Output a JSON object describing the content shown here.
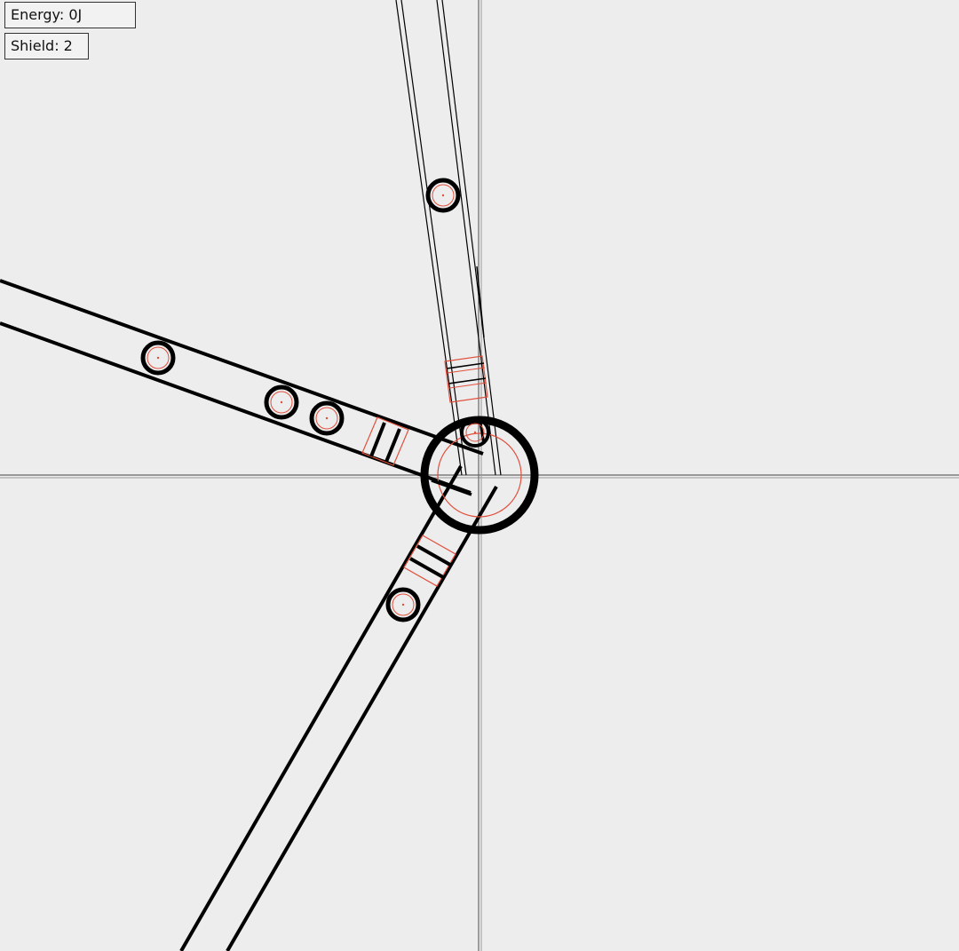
{
  "hud": {
    "energy_label": "Energy: 0J",
    "shield_label": "Shield: 2"
  },
  "colors": {
    "background": "#ededed",
    "ink": "#000000",
    "accent_red": "#e0503c",
    "axis": "#555555"
  },
  "scene": {
    "core": {
      "name": "player-core-ring"
    },
    "lanes": [
      {
        "name": "lane-north",
        "note": "thin-rail lane"
      },
      {
        "name": "lane-west",
        "note": "thick lane"
      },
      {
        "name": "lane-southwest",
        "note": "thick lane"
      }
    ],
    "enemies_count": 6
  }
}
